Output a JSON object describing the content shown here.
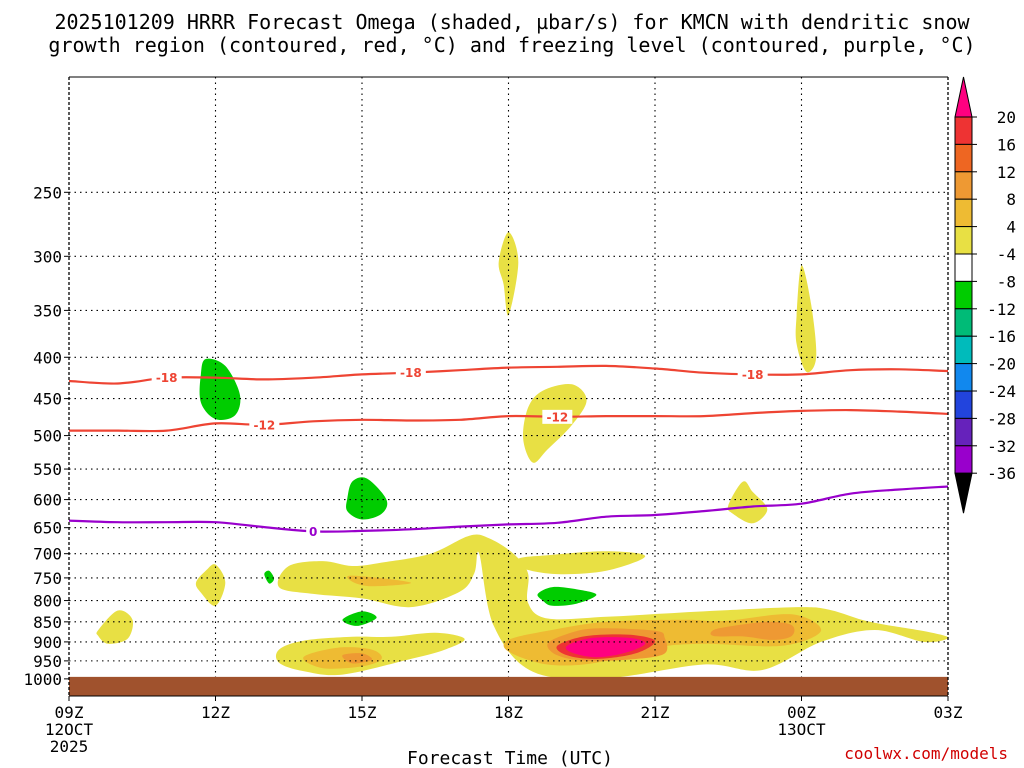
{
  "chart_data": {
    "type": "time-height cross section",
    "title_line1": "2025101209 HRRR Forecast Omega (shaded, µbar/s) for KMCN with dendritic snow",
    "title_line2": "growth region (contoured, red, °C) and freezing level (contoured, purple, °C)",
    "xlabel": "Forecast Time (UTC)",
    "credit": "coolwx.com/models",
    "colors": {
      "contour_red": "#ee4433",
      "contour_purple": "#9900cc",
      "ground": "#a0522d",
      "grid": "#000000"
    },
    "x_ticks": [
      {
        "hour": 0,
        "label": "09Z",
        "sub1": "12OCT",
        "sub2": "2025"
      },
      {
        "hour": 3,
        "label": "12Z",
        "sub1": "",
        "sub2": ""
      },
      {
        "hour": 6,
        "label": "15Z",
        "sub1": "",
        "sub2": ""
      },
      {
        "hour": 9,
        "label": "18Z",
        "sub1": "",
        "sub2": ""
      },
      {
        "hour": 12,
        "label": "21Z",
        "sub1": "",
        "sub2": ""
      },
      {
        "hour": 15,
        "label": "00Z",
        "sub1": "13OCT",
        "sub2": ""
      },
      {
        "hour": 18,
        "label": "03Z",
        "sub1": "",
        "sub2": ""
      }
    ],
    "x_range_hours": [
      0,
      18
    ],
    "y_axis": "pressure (mb), log scale, inverted",
    "y_range_mb": [
      1050,
      180
    ],
    "y_ticks": [
      250,
      300,
      350,
      400,
      450,
      500,
      550,
      600,
      650,
      700,
      750,
      800,
      850,
      900,
      950,
      1000
    ],
    "ground_level_mb": 1000,
    "colorbar": {
      "labels": [
        "20",
        "16",
        "12",
        "8",
        "4",
        "-4",
        "-8",
        "-12",
        "-16",
        "-20",
        "-24",
        "-28",
        "-32",
        "-36"
      ],
      "colors": [
        "#ff0080",
        "#ee3333",
        "#ee6622",
        "#ee9933",
        "#eebb33",
        "#e8e044",
        "#ffffff",
        "#00cc00",
        "#00bb77",
        "#00bbbb",
        "#1188ee",
        "#2244dd",
        "#6622bb",
        "#9900cc",
        "#aaaaaa",
        "#000000"
      ]
    },
    "contours": [
      {
        "name": "-18 °C",
        "label": "-18",
        "color": "#ee4433",
        "label_hours": [
          2.0,
          7.0,
          14.0
        ],
        "points": [
          [
            0,
            428
          ],
          [
            1,
            431
          ],
          [
            2,
            424
          ],
          [
            3,
            424
          ],
          [
            4,
            426
          ],
          [
            5,
            424
          ],
          [
            6,
            420
          ],
          [
            7,
            418
          ],
          [
            8,
            415
          ],
          [
            9,
            412
          ],
          [
            10,
            411
          ],
          [
            11,
            410
          ],
          [
            12,
            413
          ],
          [
            13,
            418
          ],
          [
            14,
            420
          ],
          [
            15,
            420
          ],
          [
            16,
            415
          ],
          [
            17,
            414
          ],
          [
            18,
            416
          ]
        ]
      },
      {
        "name": "-12 °C",
        "label": "-12",
        "color": "#ee4433",
        "label_hours": [
          4.0,
          10.0
        ],
        "points": [
          [
            0,
            493
          ],
          [
            1,
            493
          ],
          [
            2,
            493
          ],
          [
            3,
            483
          ],
          [
            4,
            485
          ],
          [
            5,
            480
          ],
          [
            6,
            478
          ],
          [
            7,
            479
          ],
          [
            8,
            478
          ],
          [
            9,
            473
          ],
          [
            10,
            474
          ],
          [
            11,
            473
          ],
          [
            12,
            473
          ],
          [
            13,
            473
          ],
          [
            14,
            469
          ],
          [
            15,
            466
          ],
          [
            16,
            465
          ],
          [
            17,
            467
          ],
          [
            18,
            470
          ]
        ]
      },
      {
        "name": "0 °C freezing level",
        "label": "0",
        "color": "#9900cc",
        "label_hours": [
          5.0
        ],
        "points": [
          [
            0,
            637
          ],
          [
            1,
            640
          ],
          [
            2,
            640
          ],
          [
            3,
            640
          ],
          [
            4,
            649
          ],
          [
            5,
            657
          ],
          [
            6,
            656
          ],
          [
            7,
            653
          ],
          [
            8,
            648
          ],
          [
            9,
            644
          ],
          [
            10,
            641
          ],
          [
            11,
            630
          ],
          [
            12,
            627
          ],
          [
            13,
            620
          ],
          [
            14,
            612
          ],
          [
            15,
            607
          ],
          [
            16,
            590
          ],
          [
            17,
            583
          ],
          [
            18,
            578
          ]
        ]
      }
    ],
    "shaded_regions": [
      {
        "value": "4 to 8",
        "color": "#e8e044",
        "points": [
          [
            8.4,
            700
          ],
          [
            8.7,
            860
          ],
          [
            9.5,
            980
          ],
          [
            11.0,
            998
          ],
          [
            13.0,
            960
          ],
          [
            14.2,
            975
          ],
          [
            15.4,
            900
          ],
          [
            16.5,
            870
          ],
          [
            17.5,
            900
          ],
          [
            18.0,
            890
          ],
          [
            17.6,
            875
          ],
          [
            16.4,
            850
          ],
          [
            15.6,
            822
          ],
          [
            15.0,
            815
          ],
          [
            13.5,
            822
          ],
          [
            12.2,
            830
          ],
          [
            11.0,
            838
          ],
          [
            9.8,
            842
          ],
          [
            9.4,
            805
          ],
          [
            9.4,
            740
          ],
          [
            9.1,
            700
          ],
          [
            8.6,
            670
          ],
          [
            8.2,
            665
          ],
          [
            7.4,
            700
          ],
          [
            6.4,
            718
          ],
          [
            5.8,
            725
          ],
          [
            5.2,
            715
          ],
          [
            4.5,
            725
          ],
          [
            4.3,
            770
          ],
          [
            5.0,
            785
          ],
          [
            6.0,
            795
          ],
          [
            7.0,
            815
          ],
          [
            8.0,
            780
          ],
          [
            8.3,
            740
          ]
        ]
      },
      {
        "value": "4 to 8",
        "color": "#e8e044",
        "points": [
          [
            9.2,
            710
          ],
          [
            9.8,
            703
          ],
          [
            11.0,
            695
          ],
          [
            11.8,
            705
          ],
          [
            11.0,
            735
          ],
          [
            10.0,
            742
          ],
          [
            9.3,
            730
          ]
        ]
      },
      {
        "value": "4 to 8",
        "color": "#e8e044",
        "points": [
          [
            4.3,
            920
          ],
          [
            4.8,
            897
          ],
          [
            5.8,
            887
          ],
          [
            6.6,
            887
          ],
          [
            7.5,
            877
          ],
          [
            8.1,
            892
          ],
          [
            7.7,
            920
          ],
          [
            6.9,
            948
          ],
          [
            5.6,
            988
          ],
          [
            4.8,
            978
          ],
          [
            4.3,
            955
          ]
        ]
      },
      {
        "value": "4 to 8",
        "color": "#e8e044",
        "points": [
          [
            0.6,
            870
          ],
          [
            1.0,
            823
          ],
          [
            1.3,
            845
          ],
          [
            1.2,
            892
          ],
          [
            0.8,
            905
          ],
          [
            0.6,
            885
          ]
        ]
      },
      {
        "value": "4 to 8",
        "color": "#e8e044",
        "points": [
          [
            2.6,
            760
          ],
          [
            2.8,
            735
          ],
          [
            3.0,
            722
          ],
          [
            3.2,
            760
          ],
          [
            3.0,
            812
          ],
          [
            2.7,
            782
          ]
        ]
      },
      {
        "value": "4 to 8",
        "color": "#e8e044",
        "points": [
          [
            9.4,
            462
          ],
          [
            9.7,
            440
          ],
          [
            10.3,
            432
          ],
          [
            10.6,
            452
          ],
          [
            10.3,
            485
          ],
          [
            9.8,
            520
          ],
          [
            9.5,
            540
          ],
          [
            9.3,
            505
          ]
        ]
      },
      {
        "value": "4 to 8",
        "color": "#e8e044",
        "points": [
          [
            8.8,
            305
          ],
          [
            9.0,
            280
          ],
          [
            9.2,
            305
          ],
          [
            9.0,
            355
          ],
          [
            8.9,
            325
          ]
        ]
      },
      {
        "value": "4 to 8",
        "color": "#e8e044",
        "points": [
          [
            14.9,
            355
          ],
          [
            15.0,
            308
          ],
          [
            15.2,
            345
          ],
          [
            15.3,
            400
          ],
          [
            15.1,
            417
          ],
          [
            14.9,
            385
          ]
        ]
      },
      {
        "value": "4 to 8",
        "color": "#e8e044",
        "points": [
          [
            13.5,
            610
          ],
          [
            13.8,
            570
          ],
          [
            14.0,
            587
          ],
          [
            14.3,
            617
          ],
          [
            14.0,
            642
          ],
          [
            13.6,
            625
          ]
        ]
      },
      {
        "value": "8 to 12",
        "color": "#eebb33",
        "points": [
          [
            9.0,
            895
          ],
          [
            9.8,
            872
          ],
          [
            11.0,
            850
          ],
          [
            12.6,
            845
          ],
          [
            13.4,
            848
          ],
          [
            14.8,
            832
          ],
          [
            15.4,
            872
          ],
          [
            14.6,
            910
          ],
          [
            13.0,
            905
          ],
          [
            12.0,
            915
          ],
          [
            10.8,
            955
          ],
          [
            9.8,
            960
          ],
          [
            9.0,
            925
          ]
        ]
      },
      {
        "value": "8 to 12",
        "color": "#eebb33",
        "points": [
          [
            4.8,
            940
          ],
          [
            5.5,
            915
          ],
          [
            6.2,
            920
          ],
          [
            6.4,
            945
          ],
          [
            6.0,
            965
          ],
          [
            5.2,
            970
          ]
        ]
      },
      {
        "value": "8 to 12",
        "color": "#eebb33",
        "points": [
          [
            5.8,
            745
          ],
          [
            7.0,
            760
          ],
          [
            6.2,
            768
          ],
          [
            5.8,
            758
          ]
        ]
      },
      {
        "value": "12 to 16",
        "color": "#ee9933",
        "points": [
          [
            9.8,
            905
          ],
          [
            10.2,
            880
          ],
          [
            10.8,
            866
          ],
          [
            12.0,
            872
          ],
          [
            12.2,
            890
          ],
          [
            12.2,
            930
          ],
          [
            11.6,
            945
          ],
          [
            10.6,
            950
          ],
          [
            10.0,
            935
          ]
        ]
      },
      {
        "value": "12 to 16",
        "color": "#ee9933",
        "points": [
          [
            13.2,
            870
          ],
          [
            13.6,
            860
          ],
          [
            14.3,
            850
          ],
          [
            14.8,
            858
          ],
          [
            14.8,
            885
          ],
          [
            14.4,
            895
          ],
          [
            13.8,
            886
          ],
          [
            13.2,
            885
          ]
        ]
      },
      {
        "value": "12 to 16",
        "color": "#ee9933",
        "points": [
          [
            5.6,
            935
          ],
          [
            6.0,
            930
          ],
          [
            6.2,
            947
          ],
          [
            5.8,
            957
          ]
        ]
      },
      {
        "value": "16 to 20",
        "color": "#ee3333",
        "points": [
          [
            10.0,
            910
          ],
          [
            10.6,
            885
          ],
          [
            11.5,
            882
          ],
          [
            12.0,
            898
          ],
          [
            11.6,
            930
          ],
          [
            10.8,
            945
          ],
          [
            10.2,
            935
          ]
        ]
      },
      {
        "value": "> 20",
        "color": "#ff0080",
        "points": [
          [
            10.2,
            910
          ],
          [
            10.7,
            890
          ],
          [
            11.5,
            890
          ],
          [
            11.8,
            905
          ],
          [
            11.4,
            928
          ],
          [
            10.8,
            940
          ],
          [
            10.3,
            928
          ]
        ]
      },
      {
        "value": "-4 to -8",
        "color": "#00cc00",
        "points": [
          [
            2.7,
            420
          ],
          [
            2.8,
            402
          ],
          [
            3.2,
            410
          ],
          [
            3.5,
            445
          ],
          [
            3.4,
            472
          ],
          [
            3.0,
            477
          ],
          [
            2.7,
            455
          ]
        ]
      },
      {
        "value": "-4 to -8",
        "color": "#00cc00",
        "points": [
          [
            5.7,
            598
          ],
          [
            5.8,
            570
          ],
          [
            6.1,
            565
          ],
          [
            6.5,
            600
          ],
          [
            6.4,
            625
          ],
          [
            6.0,
            635
          ],
          [
            5.7,
            620
          ]
        ]
      },
      {
        "value": "-4 to -8",
        "color": "#00cc00",
        "points": [
          [
            9.6,
            785
          ],
          [
            9.9,
            770
          ],
          [
            10.4,
            775
          ],
          [
            10.8,
            787
          ],
          [
            10.4,
            807
          ],
          [
            9.9,
            812
          ],
          [
            9.7,
            800
          ]
        ]
      },
      {
        "value": "-4 to -8",
        "color": "#00cc00",
        "points": [
          [
            5.6,
            845
          ],
          [
            6.0,
            825
          ],
          [
            6.3,
            840
          ],
          [
            5.9,
            860
          ]
        ]
      },
      {
        "value": "-4 to -8",
        "color": "#00cc00",
        "points": [
          [
            4.0,
            742
          ],
          [
            4.1,
            735
          ],
          [
            4.2,
            752
          ],
          [
            4.1,
            762
          ]
        ]
      }
    ]
  }
}
